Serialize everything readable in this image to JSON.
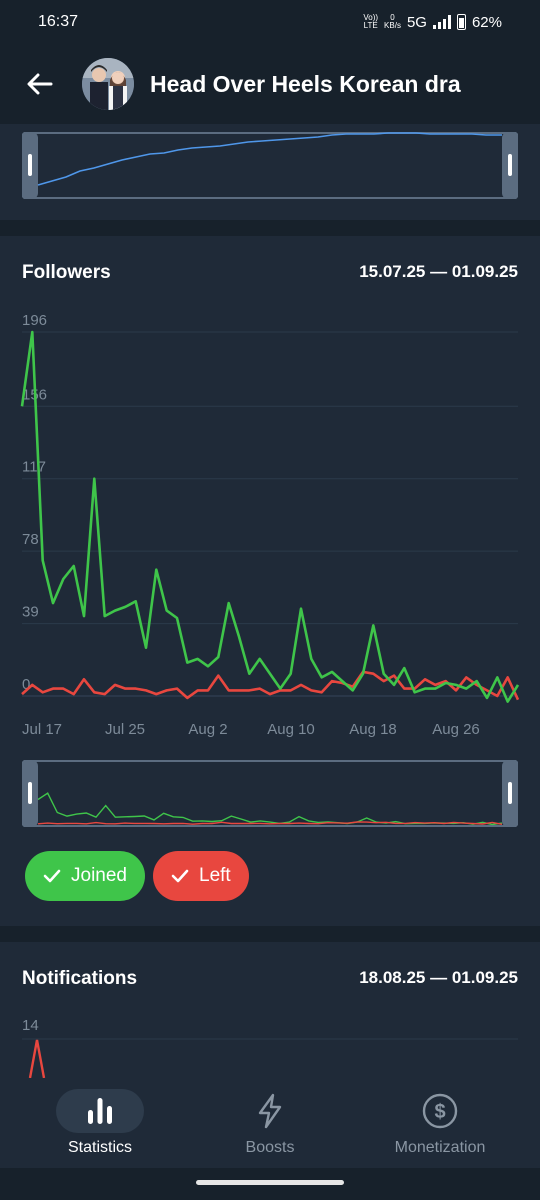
{
  "status": {
    "time": "16:37",
    "volte_top": "Vo))",
    "volte_bottom": "LTE",
    "speed_top": "0",
    "speed_bottom": "KB/s",
    "network": "5G",
    "battery": "62%"
  },
  "header": {
    "title": "Head Over Heels Korean dra"
  },
  "followers": {
    "title": "Followers",
    "range": "15.07.25 — 01.09.25",
    "chart_data": {
      "type": "line",
      "y_ticks": [
        "196",
        "156",
        "117",
        "78",
        "39",
        "0"
      ],
      "x_ticks": [
        "Jul 17",
        "Jul 25",
        "Aug 2",
        "Aug 10",
        "Aug 18",
        "Aug 26"
      ],
      "ylim": [
        0,
        196
      ],
      "series": [
        {
          "name": "Joined",
          "color": "#3fc54a",
          "values": [
            156,
            196,
            73,
            50,
            63,
            70,
            43,
            117,
            43,
            46,
            48,
            51,
            26,
            68,
            46,
            42,
            18,
            20,
            16,
            21,
            50,
            32,
            12,
            20,
            12,
            4,
            12,
            47,
            20,
            10,
            13,
            8,
            3,
            12,
            38,
            12,
            6,
            15,
            2,
            4,
            4,
            7,
            6,
            4,
            8,
            -1,
            10,
            -3,
            6
          ]
        },
        {
          "name": "Left",
          "color": "#e8473f",
          "values": [
            1,
            6,
            2,
            4,
            4,
            1,
            9,
            2,
            1,
            6,
            4,
            4,
            3,
            1,
            3,
            4,
            -1,
            3,
            3,
            11,
            3,
            3,
            3,
            4,
            1,
            3,
            3,
            6,
            3,
            2,
            8,
            7,
            5,
            13,
            12,
            8,
            11,
            4,
            4,
            9,
            6,
            8,
            3,
            10,
            6,
            3,
            0,
            10,
            -2
          ]
        }
      ]
    },
    "legend": {
      "joined": "Joined",
      "left": "Left"
    }
  },
  "notifications": {
    "title": "Notifications",
    "range": "18.08.25 — 01.09.25",
    "y_top": "14"
  },
  "nav": {
    "statistics": "Statistics",
    "boosts": "Boosts",
    "monetization": "Monetization"
  },
  "colors": {
    "bg": "#17212b",
    "card": "#1f2a38",
    "accent_blue": "#4f97ea",
    "joined": "#3fc54a",
    "left": "#e8473f"
  }
}
